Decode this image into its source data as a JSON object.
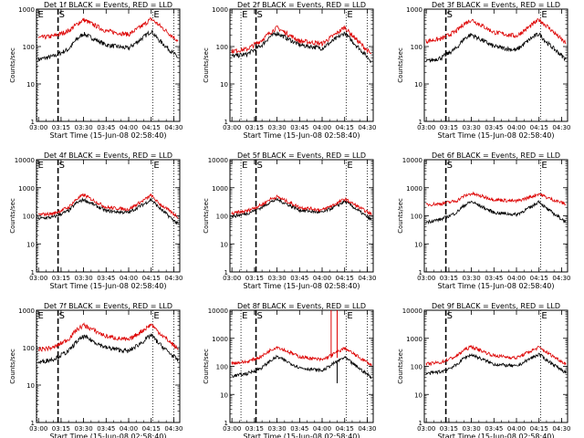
{
  "common": {
    "xlabel": "Start Time (15-Jun-08 02:58:40)",
    "ylabel": "Counts/sec",
    "x_ticks": [
      "03:00",
      "03:15",
      "03:30",
      "03:45",
      "04:00",
      "04:15",
      "04:30"
    ],
    "y_ticks": [
      "1",
      "10",
      "100",
      "1000",
      "10000"
    ],
    "marker_labels": {
      "E": "E",
      "S": "S"
    },
    "colors": {
      "events": "#000000",
      "lld": "#dd0000"
    }
  },
  "chart_data": [
    {
      "type": "line",
      "title": "Det 1f BLACK = Events, RED = LLD",
      "y_scale": "log",
      "ylim": [
        1,
        1000
      ],
      "xlim_minutes": [
        "02:58:40",
        "04:34"
      ],
      "markers": {
        "E_left": "02:59",
        "S": "03:13",
        "E_right": "04:16",
        "end": "04:30"
      },
      "series": [
        {
          "name": "BLACK = Events",
          "x": [
            "03:00",
            "03:10",
            "03:20",
            "03:25",
            "03:30",
            "03:45",
            "04:00",
            "04:10",
            "04:15",
            "04:20",
            "04:33"
          ],
          "values": [
            45,
            55,
            85,
            150,
            220,
            110,
            90,
            180,
            260,
            150,
            50
          ]
        },
        {
          "name": "RED = LLD",
          "x": [
            "03:00",
            "03:10",
            "03:20",
            "03:25",
            "03:30",
            "03:45",
            "04:00",
            "04:10",
            "04:15",
            "04:20",
            "04:33"
          ],
          "values": [
            170,
            190,
            260,
            380,
            520,
            260,
            210,
            380,
            550,
            380,
            140
          ]
        }
      ]
    },
    {
      "type": "line",
      "title": "Det 2f BLACK = Events, RED = LLD",
      "y_scale": "log",
      "ylim": [
        1,
        1000
      ],
      "xlim_minutes": [
        "02:58:40",
        "04:34"
      ],
      "markers": {
        "E_left": "03:06",
        "S": "03:16",
        "E_right": "04:16",
        "end": "04:30"
      },
      "series": [
        {
          "name": "BLACK = Events",
          "x": [
            "03:00",
            "03:10",
            "03:20",
            "03:25",
            "03:30",
            "03:45",
            "04:00",
            "04:10",
            "04:15",
            "04:20",
            "04:33"
          ],
          "values": [
            55,
            62,
            110,
            180,
            230,
            110,
            90,
            170,
            230,
            140,
            40
          ]
        },
        {
          "name": "RED = LLD",
          "x": [
            "03:00",
            "03:10",
            "03:20",
            "03:25",
            "03:30",
            "03:45",
            "04:00",
            "04:10",
            "04:15",
            "04:20",
            "04:33"
          ],
          "values": [
            75,
            85,
            150,
            230,
            320,
            140,
            120,
            230,
            330,
            200,
            60
          ]
        }
      ]
    },
    {
      "type": "line",
      "title": "Det 3f BLACK = Events, RED = LLD",
      "y_scale": "log",
      "ylim": [
        1,
        1000
      ],
      "xlim_minutes": [
        "02:58:40",
        "04:34"
      ],
      "markers": {
        "S": "03:13",
        "E_right": "04:16"
      },
      "series": [
        {
          "name": "BLACK = Events",
          "x": [
            "03:00",
            "03:10",
            "03:20",
            "03:25",
            "03:30",
            "03:45",
            "04:00",
            "04:10",
            "04:15",
            "04:20",
            "04:33"
          ],
          "values": [
            40,
            50,
            90,
            160,
            210,
            100,
            80,
            170,
            220,
            130,
            45
          ]
        },
        {
          "name": "RED = LLD",
          "x": [
            "03:00",
            "03:10",
            "03:20",
            "03:25",
            "03:30",
            "03:45",
            "04:00",
            "04:10",
            "04:15",
            "04:20",
            "04:33"
          ],
          "values": [
            140,
            160,
            260,
            400,
            520,
            240,
            190,
            370,
            520,
            360,
            120
          ]
        }
      ]
    },
    {
      "type": "line",
      "title": "Det 4f BLACK = Events, RED = LLD",
      "y_scale": "log",
      "ylim": [
        1,
        10000
      ],
      "xlim_minutes": [
        "02:58:40",
        "04:34"
      ],
      "markers": {
        "E_left": "02:59",
        "S": "03:13",
        "E_right": "04:16",
        "end": "04:30"
      },
      "series": [
        {
          "name": "BLACK = Events",
          "x": [
            "03:00",
            "03:10",
            "03:20",
            "03:25",
            "03:30",
            "03:45",
            "04:00",
            "04:10",
            "04:15",
            "04:20",
            "04:33"
          ],
          "values": [
            80,
            90,
            150,
            280,
            380,
            150,
            130,
            260,
            380,
            200,
            50
          ]
        },
        {
          "name": "RED = LLD",
          "x": [
            "03:00",
            "03:10",
            "03:20",
            "03:25",
            "03:30",
            "03:45",
            "04:00",
            "04:10",
            "04:15",
            "04:20",
            "04:33"
          ],
          "values": [
            110,
            120,
            200,
            380,
            560,
            200,
            170,
            360,
            540,
            280,
            90
          ]
        }
      ]
    },
    {
      "type": "line",
      "title": "Det 5f BLACK = Events, RED = LLD",
      "y_scale": "log",
      "ylim": [
        1,
        10000
      ],
      "xlim_minutes": [
        "02:58:40",
        "04:34"
      ],
      "markers": {
        "E_left": "03:06",
        "S": "03:16",
        "E_right": "04:16",
        "end": "04:30"
      },
      "series": [
        {
          "name": "BLACK = Events",
          "x": [
            "03:00",
            "03:10",
            "03:20",
            "03:25",
            "03:30",
            "03:45",
            "04:00",
            "04:10",
            "04:15",
            "04:20",
            "04:33"
          ],
          "values": [
            95,
            120,
            200,
            300,
            380,
            160,
            130,
            230,
            330,
            220,
            70
          ]
        },
        {
          "name": "RED = LLD",
          "x": [
            "03:00",
            "03:10",
            "03:20",
            "03:25",
            "03:30",
            "03:45",
            "04:00",
            "04:10",
            "04:15",
            "04:20",
            "04:33"
          ],
          "values": [
            120,
            150,
            250,
            380,
            480,
            200,
            160,
            280,
            400,
            280,
            110
          ]
        }
      ]
    },
    {
      "type": "line",
      "title": "Det 6f BLACK = Events, RED = LLD",
      "y_scale": "log",
      "ylim": [
        1,
        10000
      ],
      "xlim_minutes": [
        "02:58:40",
        "04:34"
      ],
      "markers": {
        "S": "03:13",
        "E_right": "04:16"
      },
      "series": [
        {
          "name": "BLACK = Events",
          "x": [
            "03:00",
            "03:10",
            "03:20",
            "03:25",
            "03:30",
            "03:45",
            "04:00",
            "04:10",
            "04:15",
            "04:20",
            "04:33"
          ],
          "values": [
            60,
            75,
            130,
            230,
            320,
            130,
            110,
            210,
            330,
            180,
            60
          ]
        },
        {
          "name": "RED = LLD",
          "x": [
            "03:00",
            "03:10",
            "03:20",
            "03:25",
            "03:30",
            "03:45",
            "04:00",
            "04:10",
            "04:15",
            "04:20",
            "04:33"
          ],
          "values": [
            250,
            270,
            340,
            500,
            620,
            380,
            330,
            480,
            620,
            450,
            260
          ]
        }
      ]
    },
    {
      "type": "line",
      "title": "Det 7f BLACK = Events, RED = LLD",
      "y_scale": "log",
      "ylim": [
        1,
        1000
      ],
      "xlim_minutes": [
        "02:58:40",
        "04:34"
      ],
      "markers": {
        "E_left": "02:59",
        "S": "03:13",
        "E_right": "04:16",
        "end": "04:30"
      },
      "series": [
        {
          "name": "BLACK = Events",
          "x": [
            "03:00",
            "03:10",
            "03:20",
            "03:25",
            "03:30",
            "03:45",
            "04:00",
            "04:10",
            "04:15",
            "04:20",
            "04:33"
          ],
          "values": [
            40,
            50,
            80,
            140,
            200,
            100,
            80,
            150,
            220,
            130,
            45
          ]
        },
        {
          "name": "RED = LLD",
          "x": [
            "03:00",
            "03:10",
            "03:20",
            "03:25",
            "03:30",
            "03:45",
            "04:00",
            "04:10",
            "04:15",
            "04:20",
            "04:33"
          ],
          "values": [
            90,
            100,
            170,
            290,
            400,
            200,
            160,
            300,
            420,
            260,
            90
          ]
        }
      ]
    },
    {
      "type": "line",
      "title": "Det 8f BLACK = Events, RED = LLD",
      "y_scale": "log",
      "ylim": [
        1,
        10000
      ],
      "xlim_minutes": [
        "02:58:40",
        "04:34"
      ],
      "markers": {
        "E_left": "03:06",
        "S": "03:16",
        "E_right": "04:16",
        "end": "04:30"
      },
      "spikes": {
        "x": [
          "04:06",
          "04:10"
        ],
        "value": 10000,
        "series": "RED = LLD"
      },
      "series": [
        {
          "name": "BLACK = Events",
          "x": [
            "03:00",
            "03:10",
            "03:20",
            "03:25",
            "03:30",
            "03:45",
            "04:00",
            "04:10",
            "04:15",
            "04:20",
            "04:33"
          ],
          "values": [
            45,
            55,
            90,
            150,
            220,
            90,
            70,
            150,
            210,
            130,
            40
          ]
        },
        {
          "name": "RED = LLD",
          "x": [
            "03:00",
            "03:10",
            "03:20",
            "03:25",
            "03:30",
            "03:45",
            "04:00",
            "04:10",
            "04:15",
            "04:20",
            "04:33"
          ],
          "values": [
            130,
            145,
            230,
            360,
            500,
            220,
            170,
            320,
            450,
            300,
            110
          ]
        }
      ]
    },
    {
      "type": "line",
      "title": "Det 9f BLACK = Events, RED = LLD",
      "y_scale": "log",
      "ylim": [
        1,
        10000
      ],
      "xlim_minutes": [
        "02:58:40",
        "04:34"
      ],
      "markers": {
        "S": "03:13",
        "E_right": "04:16"
      },
      "series": [
        {
          "name": "BLACK = Events",
          "x": [
            "03:00",
            "03:10",
            "03:20",
            "03:25",
            "03:30",
            "03:45",
            "04:00",
            "04:10",
            "04:15",
            "04:20",
            "04:33"
          ],
          "values": [
            55,
            65,
            110,
            200,
            260,
            120,
            100,
            200,
            270,
            170,
            60
          ]
        },
        {
          "name": "RED = LLD",
          "x": [
            "03:00",
            "03:10",
            "03:20",
            "03:25",
            "03:30",
            "03:45",
            "04:00",
            "04:10",
            "04:15",
            "04:20",
            "04:33"
          ],
          "values": [
            120,
            140,
            230,
            380,
            500,
            240,
            200,
            360,
            480,
            320,
            120
          ]
        }
      ]
    }
  ]
}
